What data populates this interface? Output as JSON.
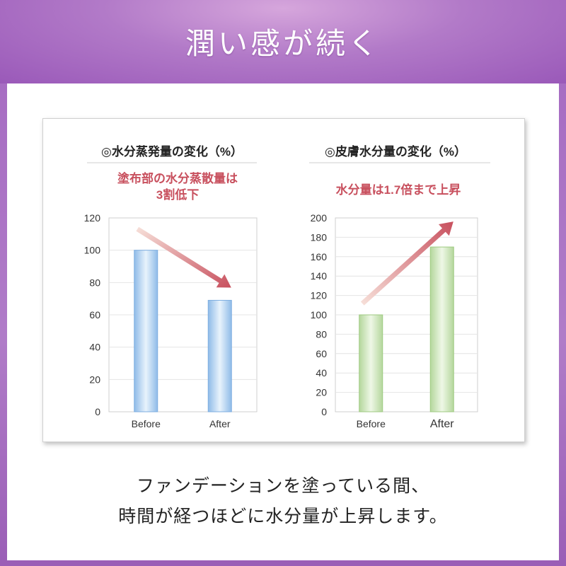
{
  "header": {
    "title": "潤い感が続く"
  },
  "chart_data": [
    {
      "type": "bar",
      "title": "◎水分蒸発量の変化（%）",
      "annotation": [
        "塗布部の水分蒸散量は",
        "3割低下"
      ],
      "categories": [
        "Before",
        "After"
      ],
      "values": [
        100,
        69
      ],
      "ylim": [
        0,
        120
      ],
      "yticks": [
        0,
        20,
        40,
        60,
        80,
        100,
        120
      ],
      "grid": true,
      "bar_color": "#a9cdee",
      "annotation_color": "#c8505e",
      "arrow_direction": "down"
    },
    {
      "type": "bar",
      "title": "◎皮膚水分量の変化（%）",
      "annotation": [
        "水分量は1.7倍まで上昇"
      ],
      "categories": [
        "Before",
        "After"
      ],
      "values": [
        100,
        170
      ],
      "ylim": [
        0,
        200
      ],
      "yticks": [
        0,
        20,
        40,
        60,
        80,
        100,
        120,
        140,
        160,
        180,
        200
      ],
      "grid": true,
      "bar_color": "#c4e0b0",
      "annotation_color": "#c8505e",
      "arrow_direction": "up"
    }
  ],
  "caption": {
    "line1": "ファンデーションを塗っている間、",
    "line2": "時間が経つほどに水分量が上昇します。"
  }
}
